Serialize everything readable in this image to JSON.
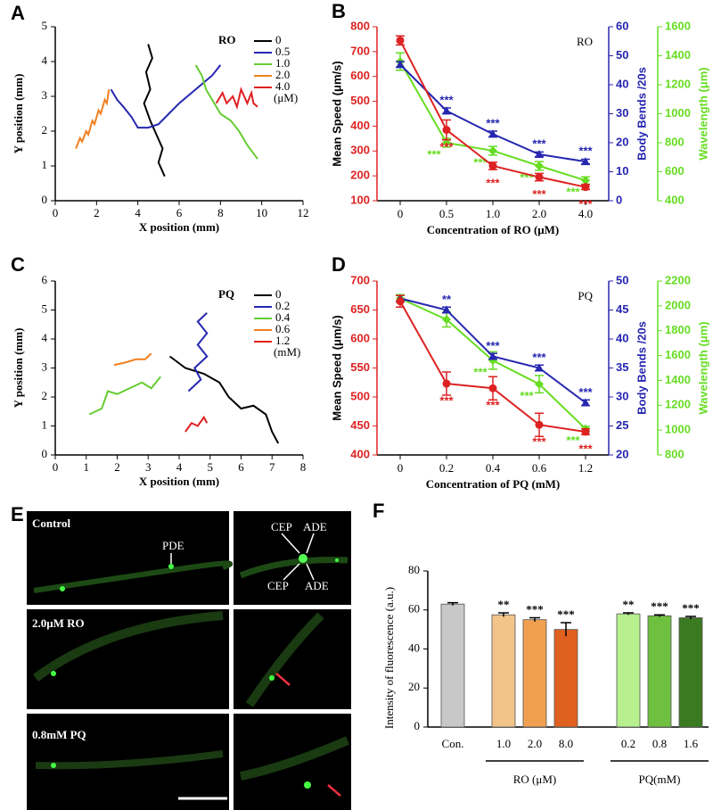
{
  "chart_data": [
    {
      "panel_label": "A",
      "type": "trajectory",
      "xlabel": "X position (mm)",
      "ylabel": "Y position (mm)",
      "xlim": [
        0,
        12
      ],
      "xticks": [
        0,
        2,
        4,
        6,
        8,
        10,
        12
      ],
      "ylim": [
        0,
        5
      ],
      "yticks": [
        0,
        1,
        2,
        3,
        4,
        5
      ],
      "legend_title": "RO",
      "legend_unit": "(μM)",
      "series": [
        {
          "name": "0",
          "color": "#000000",
          "x": [
            4.5,
            4.7,
            4.4,
            4.6,
            4.3,
            4.6,
            4.9,
            5.2,
            5.0,
            5.3
          ],
          "y": [
            4.5,
            4.1,
            3.7,
            3.2,
            2.8,
            2.3,
            1.9,
            1.5,
            1.1,
            0.7
          ]
        },
        {
          "name": "0.5",
          "color": "#2626b0",
          "x": [
            2.7,
            3.0,
            3.3,
            3.7,
            4.0,
            4.5,
            5.0,
            5.5,
            6.0,
            6.6,
            7.2,
            7.6,
            8.0
          ],
          "y": [
            3.2,
            2.9,
            2.7,
            2.4,
            2.1,
            2.1,
            2.2,
            2.5,
            2.8,
            3.1,
            3.4,
            3.6,
            3.9
          ]
        },
        {
          "name": "1.0",
          "color": "#66cc33",
          "x": [
            6.8,
            7.1,
            7.3,
            7.7,
            8.0,
            8.5,
            8.9,
            9.3,
            9.8
          ],
          "y": [
            3.9,
            3.6,
            3.2,
            2.8,
            2.5,
            2.3,
            2.0,
            1.6,
            1.2
          ]
        },
        {
          "name": "2.0",
          "color": "#f08020",
          "x": [
            1.0,
            1.2,
            1.3,
            1.5,
            1.6,
            1.8,
            1.9,
            2.1,
            2.2,
            2.4,
            2.5,
            2.6
          ],
          "y": [
            1.5,
            1.8,
            1.7,
            2.0,
            1.9,
            2.3,
            2.2,
            2.6,
            2.5,
            2.9,
            2.8,
            3.2
          ]
        },
        {
          "name": "4.0",
          "color": "#e02020",
          "x": [
            7.8,
            8.1,
            8.3,
            8.6,
            8.8,
            9.0,
            9.3,
            9.5,
            9.6,
            9.8
          ],
          "y": [
            2.8,
            3.1,
            2.8,
            3.0,
            2.7,
            3.2,
            2.8,
            3.1,
            2.8,
            2.7
          ]
        }
      ]
    },
    {
      "panel_label": "B",
      "type": "line",
      "title": "RO",
      "xlabel": "Concentration of RO (μM)",
      "categories": [
        "0",
        "0.5",
        "1.0",
        "2.0",
        "4.0"
      ],
      "ylabel": "Mean Speed (μm/s)",
      "ylim": [
        100,
        800
      ],
      "yticks": [
        100,
        200,
        300,
        400,
        500,
        600,
        700,
        800
      ],
      "y2label": "Body Bends /20s",
      "y2lim": [
        0,
        60
      ],
      "y2ticks": [
        0,
        10,
        20,
        30,
        40,
        50,
        60
      ],
      "y3label": "Wavelength (μm)",
      "y3lim": [
        400,
        1600
      ],
      "y3ticks": [
        400,
        600,
        800,
        1000,
        1200,
        1400,
        1600
      ],
      "series": [
        {
          "axis": "y3",
          "color": "#66dd22",
          "values": [
            1360,
            800,
            745,
            640,
            540
          ],
          "errors": [
            60,
            30,
            30,
            30,
            25
          ],
          "sig": [
            null,
            "***",
            "***",
            "***",
            "***"
          ]
        },
        {
          "axis": "y2",
          "color": "#2626b0",
          "values": [
            47,
            31,
            23,
            16,
            13.5
          ],
          "errors": [
            1,
            1,
            1,
            0.8,
            0.8
          ],
          "sig": [
            null,
            "***",
            "***",
            "***",
            "***"
          ]
        },
        {
          "axis": "y",
          "color": "#dd2222",
          "values": [
            745,
            385,
            240,
            195,
            155
          ],
          "errors": [
            18,
            40,
            15,
            15,
            10
          ],
          "sig": [
            null,
            "***",
            "***",
            "***",
            "***"
          ]
        }
      ]
    },
    {
      "panel_label": "C",
      "type": "trajectory",
      "xlabel": "X position (mm)",
      "ylabel": "Y position (mm)",
      "xlim": [
        0,
        8
      ],
      "xticks": [
        0,
        1,
        2,
        3,
        4,
        5,
        6,
        7,
        8
      ],
      "ylim": [
        0,
        6
      ],
      "yticks": [
        0,
        1,
        2,
        3,
        4,
        5,
        6
      ],
      "legend_title": "PQ",
      "legend_unit": "(mM)",
      "series": [
        {
          "name": "0",
          "color": "#000000",
          "x": [
            3.7,
            4.2,
            4.8,
            5.3,
            5.6,
            6.0,
            6.4,
            6.8,
            7.0,
            7.2
          ],
          "y": [
            3.4,
            3.0,
            2.8,
            2.5,
            2.0,
            1.6,
            1.7,
            1.4,
            0.8,
            0.4
          ]
        },
        {
          "name": "0.2",
          "color": "#2626b0",
          "x": [
            4.9,
            4.6,
            4.9,
            4.6,
            4.9,
            4.5,
            4.7,
            4.3
          ],
          "y": [
            4.9,
            4.6,
            4.2,
            3.8,
            3.4,
            3.0,
            2.6,
            2.2
          ]
        },
        {
          "name": "0.4",
          "color": "#66cc33",
          "x": [
            1.1,
            1.5,
            1.7,
            2.0,
            2.4,
            2.8,
            3.1,
            3.4
          ],
          "y": [
            1.4,
            1.6,
            2.2,
            2.1,
            2.3,
            2.5,
            2.3,
            2.7
          ]
        },
        {
          "name": "0.6",
          "color": "#f08020",
          "x": [
            1.9,
            2.3,
            2.6,
            2.9,
            3.1
          ],
          "y": [
            3.1,
            3.2,
            3.3,
            3.3,
            3.5
          ]
        },
        {
          "name": "1.2",
          "color": "#e02020",
          "x": [
            4.2,
            4.4,
            4.6,
            4.8,
            4.9
          ],
          "y": [
            0.8,
            1.1,
            1.0,
            1.3,
            1.1
          ]
        }
      ]
    },
    {
      "panel_label": "D",
      "type": "line",
      "title": "PQ",
      "xlabel": "Concentration of PQ (mM)",
      "categories": [
        "0",
        "0.2",
        "0.4",
        "0.6",
        "1.2"
      ],
      "ylabel": "Mean Speed (μm/s)",
      "ylim": [
        400,
        700
      ],
      "yticks": [
        400,
        450,
        500,
        550,
        600,
        650,
        700
      ],
      "y2label": "Body Bends /20s",
      "y2lim": [
        20,
        50
      ],
      "y2ticks": [
        20,
        25,
        30,
        35,
        40,
        45,
        50
      ],
      "y3label": "Wavelength (μm)",
      "y3lim": [
        800,
        2200
      ],
      "y3ticks": [
        800,
        1000,
        1200,
        1400,
        1600,
        1800,
        2000,
        2200
      ],
      "series": [
        {
          "axis": "y3",
          "color": "#66dd22",
          "values": [
            2060,
            1890,
            1560,
            1370,
            1010
          ],
          "errors": [
            30,
            60,
            70,
            70,
            20
          ],
          "sig": [
            null,
            null,
            "***",
            "***",
            "***"
          ]
        },
        {
          "axis": "y2",
          "color": "#2626b0",
          "values": [
            47,
            45,
            37,
            35,
            29
          ],
          "errors": [
            0.5,
            0.5,
            0.5,
            0.5,
            0.5
          ],
          "sig": [
            null,
            "**",
            "***",
            "***",
            "***"
          ]
        },
        {
          "axis": "y",
          "color": "#dd2222",
          "values": [
            665,
            523,
            515,
            452,
            440
          ],
          "errors": [
            10,
            20,
            20,
            20,
            5
          ],
          "sig": [
            null,
            "***",
            "***",
            "***",
            "***"
          ]
        }
      ]
    },
    {
      "panel_label": "E",
      "type": "image",
      "row_labels": [
        "Control",
        "2.0μM RO",
        "0.8mM PQ"
      ],
      "annotations": [
        "PDE",
        "CEP",
        "ADE",
        "CEP",
        "ADE"
      ]
    },
    {
      "panel_label": "F",
      "type": "bar",
      "ylabel": "Intensity of fluorescence (a.u.)",
      "ylim": [
        0,
        80
      ],
      "yticks": [
        0,
        20,
        40,
        60,
        80
      ],
      "categories": [
        "Con.",
        "1.0",
        "2.0",
        "8.0",
        "0.2",
        "0.8",
        "1.6"
      ],
      "values": [
        63,
        57.5,
        55,
        50,
        58,
        57,
        56
      ],
      "errors": [
        0.7,
        1,
        1,
        3.5,
        0.5,
        0.5,
        0.7
      ],
      "colors": [
        "#c8c8c8",
        "#f2c48a",
        "#f0a050",
        "#e06020",
        "#b8f090",
        "#70c040",
        "#3a7a20"
      ],
      "sig": [
        null,
        "**",
        "***",
        "***",
        "**",
        "***",
        "***"
      ],
      "group_labels": [
        "RO (μM)",
        "PQ(mM)"
      ]
    }
  ]
}
